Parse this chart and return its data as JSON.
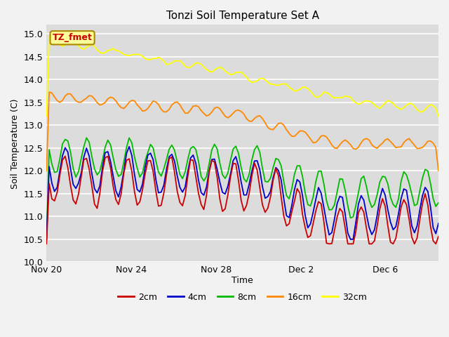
{
  "title": "Tonzi Soil Temperature Set A",
  "ylabel": "Soil Temperature (C)",
  "xlabel": "Time",
  "ylim": [
    10.0,
    15.2
  ],
  "yticks": [
    10.0,
    10.5,
    11.0,
    11.5,
    12.0,
    12.5,
    13.0,
    13.5,
    14.0,
    14.5,
    15.0
  ],
  "bg_color": "#dcdcdc",
  "line_colors": {
    "2cm": "#cc0000",
    "4cm": "#0000cc",
    "8cm": "#00bb00",
    "16cm": "#ff8800",
    "32cm": "#ffff00"
  },
  "legend_label": "TZ_fmet",
  "legend_bg": "#ffff99",
  "legend_border": "#aa8800",
  "x_tick_labels": [
    "Nov 20",
    "Nov 24",
    "Nov 28",
    "Dec 2",
    "Dec 6"
  ],
  "x_tick_days": [
    0,
    4,
    8,
    12,
    16
  ]
}
